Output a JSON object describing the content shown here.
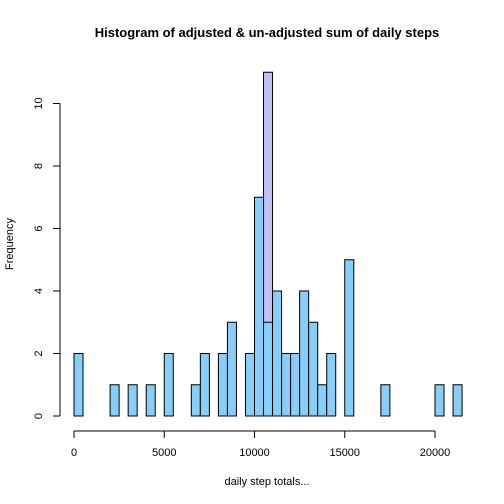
{
  "chart_data": {
    "type": "bar",
    "title": "Histogram of adjusted & un-adjusted sum of daily steps",
    "xlabel": "daily step totals...",
    "ylabel": "Frequency",
    "xlim": [
      0,
      21500
    ],
    "ylim": [
      0,
      11
    ],
    "bin_width": 500,
    "x_ticks": [
      0,
      5000,
      10000,
      15000,
      20000
    ],
    "y_ticks": [
      0,
      2,
      4,
      6,
      8,
      10
    ],
    "grid": false,
    "series": [
      {
        "color": "#c0c0f5",
        "bins": [
          {
            "x0": 10500,
            "x1": 11000,
            "count": 11
          }
        ]
      },
      {
        "color": "#87cefa",
        "bins": [
          {
            "x0": 0,
            "x1": 500,
            "count": 2
          },
          {
            "x0": 2000,
            "x1": 2500,
            "count": 1
          },
          {
            "x0": 3000,
            "x1": 3500,
            "count": 1
          },
          {
            "x0": 4000,
            "x1": 4500,
            "count": 1
          },
          {
            "x0": 5000,
            "x1": 5500,
            "count": 2
          },
          {
            "x0": 6500,
            "x1": 7000,
            "count": 1
          },
          {
            "x0": 7000,
            "x1": 7500,
            "count": 2
          },
          {
            "x0": 8000,
            "x1": 8500,
            "count": 2
          },
          {
            "x0": 8500,
            "x1": 9000,
            "count": 3
          },
          {
            "x0": 9500,
            "x1": 10000,
            "count": 2
          },
          {
            "x0": 10000,
            "x1": 10500,
            "count": 7
          },
          {
            "x0": 10500,
            "x1": 11000,
            "count": 3
          },
          {
            "x0": 11000,
            "x1": 11500,
            "count": 4
          },
          {
            "x0": 11500,
            "x1": 12000,
            "count": 2
          },
          {
            "x0": 12000,
            "x1": 12500,
            "count": 2
          },
          {
            "x0": 12500,
            "x1": 13000,
            "count": 4
          },
          {
            "x0": 13000,
            "x1": 13500,
            "count": 3
          },
          {
            "x0": 13500,
            "x1": 14000,
            "count": 1
          },
          {
            "x0": 14000,
            "x1": 14500,
            "count": 2
          },
          {
            "x0": 15000,
            "x1": 15500,
            "count": 5
          },
          {
            "x0": 17000,
            "x1": 17500,
            "count": 1
          },
          {
            "x0": 20000,
            "x1": 20500,
            "count": 1
          },
          {
            "x0": 21000,
            "x1": 21500,
            "count": 1
          }
        ]
      }
    ]
  }
}
